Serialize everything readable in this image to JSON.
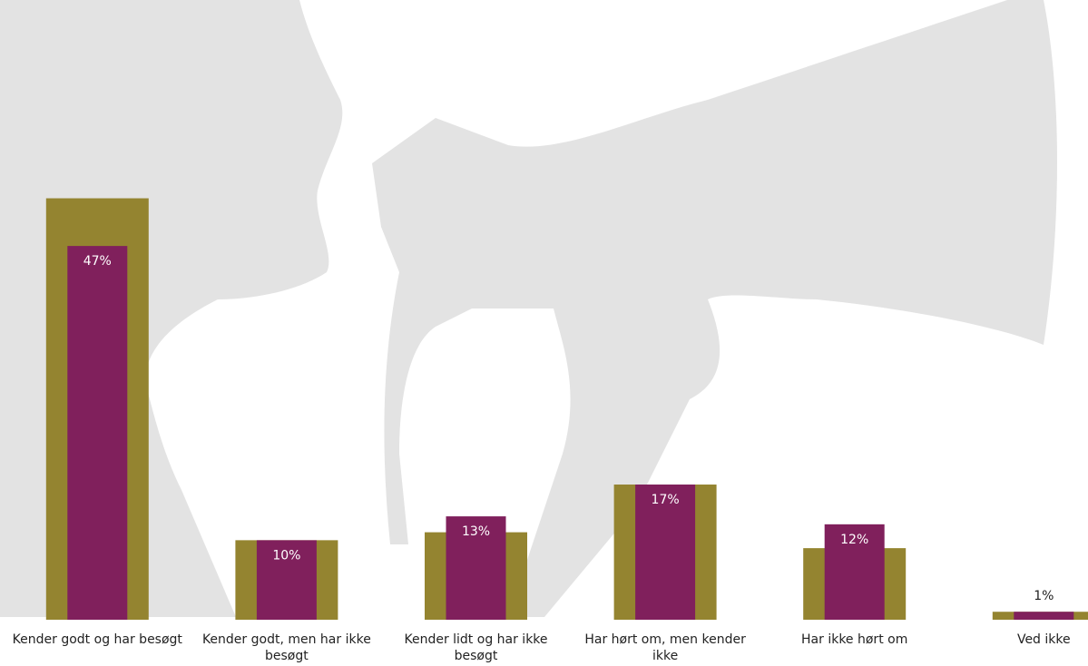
{
  "chart_data": {
    "type": "bar",
    "categories": [
      "Kender godt og har besøgt",
      "Kender godt, men har ikke besøgt",
      "Kender lidt og har ikke besøgt",
      "Har hørt om, men kender ikke",
      "Har ikke hørt om",
      "Ved ikke"
    ],
    "series": [
      {
        "color": "#948430",
        "values": [
          53,
          10,
          11,
          17,
          9,
          1
        ]
      },
      {
        "color": "#80205c",
        "values": [
          47,
          10,
          13,
          17,
          12,
          1
        ],
        "value_labels": [
          "47%",
          "10%",
          "13%",
          "17%",
          "12%",
          "1%"
        ]
      }
    ],
    "ylim": [
      0,
      55
    ]
  }
}
